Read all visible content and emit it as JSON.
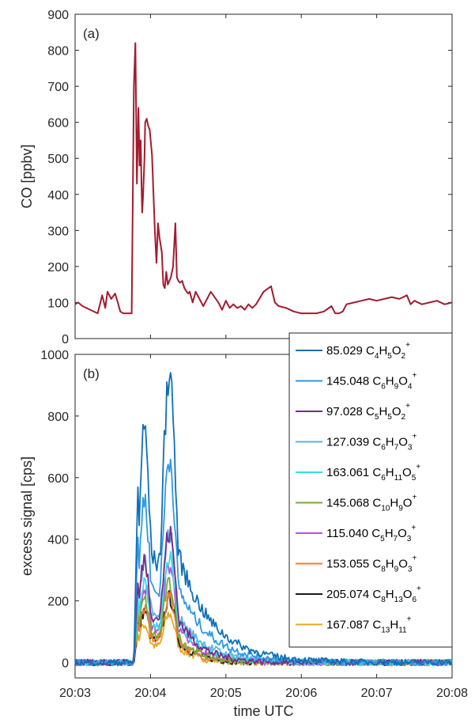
{
  "chart_data": [
    {
      "type": "line",
      "panel_label": "(a)",
      "ylabel": "CO [ppbv]",
      "ylim": [
        0,
        900
      ],
      "yticks": [
        "0",
        "100",
        "200",
        "300",
        "400",
        "500",
        "600",
        "700",
        "800",
        "900"
      ],
      "xlim_minutes": [
        0,
        5
      ],
      "grid": false,
      "series": [
        {
          "color": "#a31b2f",
          "x_min": [
            0,
            0.04,
            0.1,
            0.2,
            0.3,
            0.36,
            0.4,
            0.43,
            0.48,
            0.53,
            0.56,
            0.6,
            0.64,
            0.7,
            0.75,
            0.78,
            0.8,
            0.82,
            0.84,
            0.855,
            0.87,
            0.88,
            0.89,
            0.9,
            0.92,
            0.93,
            0.95,
            0.97,
            0.99,
            1.02,
            1.04,
            1.06,
            1.08,
            1.1,
            1.12,
            1.15,
            1.17,
            1.19,
            1.21,
            1.23,
            1.25,
            1.27,
            1.3,
            1.33,
            1.35,
            1.37,
            1.39,
            1.42,
            1.45,
            1.48,
            1.5,
            1.52,
            1.54,
            1.56,
            1.6,
            1.7,
            1.8,
            1.9,
            1.95,
            2.0,
            2.05,
            2.1,
            2.15,
            2.2,
            2.25,
            2.3,
            2.35,
            2.4,
            2.5,
            2.6,
            2.65,
            2.7,
            2.8,
            2.9,
            3.0,
            3.1,
            3.2,
            3.3,
            3.4,
            3.45,
            3.5,
            3.55,
            3.6,
            3.7,
            3.8,
            3.9,
            4.0,
            4.1,
            4.2,
            4.3,
            4.4,
            4.45,
            4.5,
            4.6,
            4.7,
            4.8,
            4.9,
            5.0
          ],
          "y": [
            95,
            100,
            90,
            80,
            70,
            120,
            85,
            130,
            110,
            125,
            105,
            75,
            70,
            70,
            70,
            700,
            820,
            430,
            640,
            480,
            550,
            430,
            350,
            390,
            500,
            600,
            610,
            590,
            580,
            510,
            400,
            290,
            210,
            320,
            280,
            240,
            150,
            140,
            185,
            150,
            160,
            170,
            200,
            320,
            170,
            160,
            155,
            160,
            140,
            130,
            125,
            130,
            115,
            100,
            130,
            90,
            130,
            100,
            80,
            105,
            85,
            95,
            85,
            90,
            80,
            95,
            85,
            95,
            130,
            145,
            100,
            90,
            85,
            75,
            70,
            70,
            70,
            75,
            90,
            70,
            70,
            75,
            95,
            100,
            105,
            110,
            105,
            110,
            115,
            110,
            120,
            95,
            105,
            95,
            100,
            105,
            95,
            100
          ]
        }
      ]
    },
    {
      "type": "line",
      "panel_label": "(b)",
      "xlabel": "time UTC",
      "ylabel": "excess signal [cps]",
      "ylim": [
        -50,
        1000
      ],
      "yticks": [
        "0",
        "200",
        "400",
        "600",
        "800",
        "1000"
      ],
      "xlim_minutes": [
        0,
        5
      ],
      "xticks": [
        "20:03",
        "20:04",
        "20:05",
        "20:06",
        "20:07",
        "20:08"
      ],
      "grid": false,
      "legend_placement": "top-right",
      "series": [
        {
          "name": "85.029 C4H5O2+",
          "mz": "85.029",
          "formula": [
            [
              "C",
              ""
            ],
            [
              "4",
              "sub"
            ],
            [
              "H",
              ""
            ],
            [
              "5",
              "sub"
            ],
            [
              "O",
              ""
            ],
            [
              "2",
              "sub"
            ],
            [
              "+",
              "sup"
            ]
          ],
          "color": "#0f6fb8",
          "peak": 970,
          "tail": 0.45
        },
        {
          "name": "145.048 C6H9O4+",
          "mz": "145.048",
          "formula": [
            [
              "C",
              ""
            ],
            [
              "6",
              "sub"
            ],
            [
              "H",
              ""
            ],
            [
              "9",
              "sub"
            ],
            [
              "O",
              ""
            ],
            [
              "4",
              "sub"
            ],
            [
              "+",
              "sup"
            ]
          ],
          "color": "#2e9ae6",
          "peak": 680,
          "tail": 0.42
        },
        {
          "name": "97.028 C5H5O2+",
          "mz": "97.028",
          "formula": [
            [
              "C",
              ""
            ],
            [
              "5",
              "sub"
            ],
            [
              "H",
              ""
            ],
            [
              "5",
              "sub"
            ],
            [
              "O",
              ""
            ],
            [
              "2",
              "sub"
            ],
            [
              "+",
              "sup"
            ]
          ],
          "color": "#7b2a8b",
          "peak": 430,
          "tail": 0.3
        },
        {
          "name": "127.039 C6H7O3+",
          "mz": "127.039",
          "formula": [
            [
              "C",
              ""
            ],
            [
              "6",
              "sub"
            ],
            [
              "H",
              ""
            ],
            [
              "7",
              "sub"
            ],
            [
              "O",
              ""
            ],
            [
              "3",
              "sub"
            ],
            [
              "+",
              "sup"
            ]
          ],
          "color": "#5ab4e2",
          "peak": 430,
          "tail": 0.38
        },
        {
          "name": "163.061 C6H11O5+",
          "mz": "163.061",
          "formula": [
            [
              "C",
              ""
            ],
            [
              "6",
              "sub"
            ],
            [
              "H",
              ""
            ],
            [
              "11",
              "sub"
            ],
            [
              "O",
              ""
            ],
            [
              "5",
              "sub"
            ],
            [
              "+",
              "sup"
            ]
          ],
          "color": "#2fe0e8",
          "peak": 350,
          "tail": 0.36
        },
        {
          "name": "145.068 C10H9O+",
          "mz": "145.068",
          "formula": [
            [
              "C",
              ""
            ],
            [
              "10",
              "sub"
            ],
            [
              "H",
              ""
            ],
            [
              "9",
              "sub"
            ],
            [
              "O",
              ""
            ],
            [
              "+",
              "sup"
            ]
          ],
          "color": "#77ac30",
          "peak": 260,
          "tail": 0.28
        },
        {
          "name": "115.040 C5H7O3+",
          "mz": "115.040",
          "formula": [
            [
              "C",
              ""
            ],
            [
              "5",
              "sub"
            ],
            [
              "H",
              ""
            ],
            [
              "7",
              "sub"
            ],
            [
              "O",
              ""
            ],
            [
              "3",
              "sub"
            ],
            [
              "+",
              "sup"
            ]
          ],
          "color": "#b454e6",
          "peak": 320,
          "tail": 0.3
        },
        {
          "name": "153.055 C8H9O3+",
          "mz": "153.055",
          "formula": [
            [
              "C",
              ""
            ],
            [
              "8",
              "sub"
            ],
            [
              "H",
              ""
            ],
            [
              "9",
              "sub"
            ],
            [
              "O",
              ""
            ],
            [
              "3",
              "sub"
            ],
            [
              "+",
              "sup"
            ]
          ],
          "color": "#f07a3a",
          "peak": 220,
          "tail": 0.26
        },
        {
          "name": "205.074 C8H13O6+",
          "mz": "205.074",
          "formula": [
            [
              "C",
              ""
            ],
            [
              "8",
              "sub"
            ],
            [
              "H",
              ""
            ],
            [
              "13",
              "sub"
            ],
            [
              "O",
              ""
            ],
            [
              "6",
              "sub"
            ],
            [
              "+",
              "sup"
            ]
          ],
          "color": "#1a1a1a",
          "peak": 215,
          "tail": 0.26
        },
        {
          "name": "167.087 C13H11+",
          "mz": "167.087",
          "formula": [
            [
              "C",
              ""
            ],
            [
              "13",
              "sub"
            ],
            [
              "H",
              ""
            ],
            [
              "11",
              "sub"
            ],
            [
              "+",
              "sup"
            ]
          ],
          "color": "#e8a820",
          "peak": 160,
          "tail": 0.24
        }
      ]
    }
  ]
}
